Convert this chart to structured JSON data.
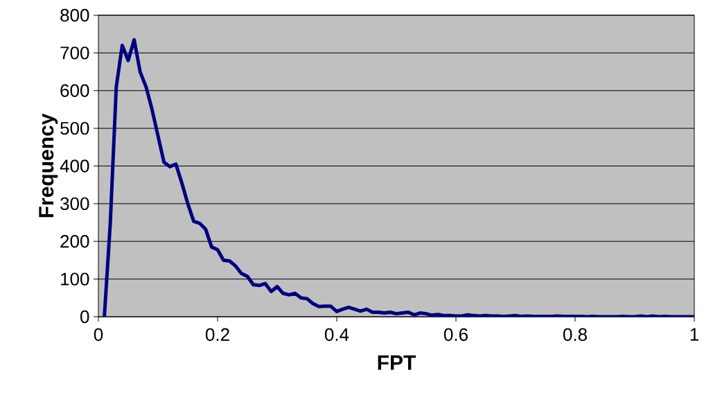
{
  "chart_data": {
    "type": "line",
    "xlabel": "FPT",
    "ylabel": "Frequency",
    "x": [
      0.01,
      0.02,
      0.03,
      0.04,
      0.05,
      0.06,
      0.07,
      0.08,
      0.09,
      0.1,
      0.11,
      0.12,
      0.13,
      0.14,
      0.15,
      0.16,
      0.17,
      0.18,
      0.19,
      0.2,
      0.21,
      0.22,
      0.23,
      0.24,
      0.25,
      0.26,
      0.27,
      0.28,
      0.29,
      0.3,
      0.31,
      0.32,
      0.33,
      0.34,
      0.35,
      0.36,
      0.37,
      0.38,
      0.39,
      0.4,
      0.41,
      0.42,
      0.43,
      0.44,
      0.45,
      0.46,
      0.47,
      0.48,
      0.49,
      0.5,
      0.51,
      0.52,
      0.53,
      0.54,
      0.55,
      0.56,
      0.57,
      0.58,
      0.59,
      0.6,
      0.61,
      0.62,
      0.63,
      0.64,
      0.65,
      0.66,
      0.67,
      0.68,
      0.69,
      0.7,
      0.71,
      0.72,
      0.73,
      0.74,
      0.75,
      0.76,
      0.77,
      0.78,
      0.79,
      0.8,
      0.81,
      0.82,
      0.83,
      0.84,
      0.85,
      0.86,
      0.87,
      0.88,
      0.89,
      0.9,
      0.91,
      0.92,
      0.93,
      0.94,
      0.95,
      0.96,
      0.97,
      0.98,
      0.99,
      1.0
    ],
    "series": [
      {
        "color": "#000080",
        "values": [
          0,
          250,
          610,
          720,
          680,
          735,
          650,
          610,
          550,
          480,
          410,
          398,
          405,
          355,
          300,
          253,
          248,
          232,
          185,
          178,
          150,
          148,
          135,
          115,
          107,
          85,
          83,
          88,
          67,
          80,
          62,
          58,
          62,
          50,
          48,
          35,
          27,
          28,
          28,
          14,
          20,
          25,
          20,
          15,
          20,
          12,
          12,
          10,
          12,
          8,
          10,
          12,
          5,
          10,
          8,
          4,
          6,
          3,
          3,
          2,
          2,
          5,
          3,
          2,
          3,
          2,
          2,
          1,
          2,
          3,
          1,
          2,
          1,
          1,
          1,
          1,
          2,
          1,
          1,
          1,
          1,
          0,
          1,
          0,
          0,
          0,
          0,
          1,
          0,
          0,
          2,
          0,
          2,
          0,
          1,
          0,
          0,
          0,
          0,
          0
        ]
      }
    ],
    "xlim": [
      0,
      1
    ],
    "ylim": [
      0,
      800
    ],
    "xticks": [
      0,
      0.2,
      0.4,
      0.6,
      0.8,
      1
    ],
    "yticks": [
      0,
      100,
      200,
      300,
      400,
      500,
      600,
      700,
      800
    ],
    "grid": "y",
    "marker": "none",
    "line_style": "solid"
  }
}
